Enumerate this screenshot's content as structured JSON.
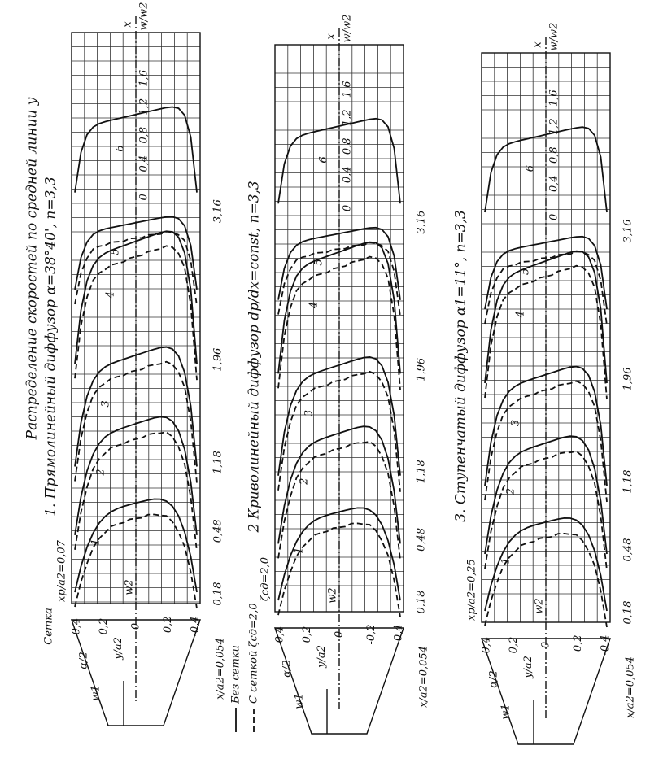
{
  "title": "Распределение скоростей по средней линии y",
  "legend": [
    "Без сетки",
    "С сеткой ζсд=2,0"
  ],
  "axis_x": "x",
  "axis_w": "w/w2",
  "axis_y": "y/a2",
  "inlet_w": "w1",
  "outlet_w": "w2",
  "angle": "α/2",
  "setka": "Сетка",
  "panels": [
    {
      "caption": "1. Прямолинейный диффузор α=38°40', n=3,3",
      "grid_pos": "xp/a2=0,07",
      "inlet": "x/a2=0,054",
      "stations": [
        "0,18",
        "0,48",
        "1,18",
        "1,96",
        "3,16"
      ],
      "y_ticks": [
        "0,4",
        "0,2",
        "0",
        "-0,2",
        "-0,4"
      ],
      "w_ticks": [
        "0",
        "0,4",
        "0,8",
        "1,2",
        "1,6"
      ],
      "profiles": [
        "1",
        "2",
        "3",
        "4",
        "5",
        "6"
      ]
    },
    {
      "caption": "2 Криволинейный диффузор dp/dx=const, n=3,3",
      "grid_pos": "ζсд=2,0",
      "inlet": "x/a2=0,054",
      "stations": [
        "0,18",
        "0,48",
        "1,18",
        "1,96",
        "3,16"
      ],
      "y_ticks": [
        "0,4",
        "0,2",
        "0",
        "-0,2",
        "-0,4"
      ],
      "w_ticks": [
        "0",
        "0,4",
        "0,8",
        "1,2",
        "1,6"
      ],
      "profiles": [
        "1",
        "2",
        "3",
        "4",
        "5",
        "6"
      ]
    },
    {
      "caption": "3. Ступенчатый диффузор α1=11°, n=3,3",
      "grid_pos": "xp/a2=0,25",
      "inlet": "x/a2=0,054",
      "stations": [
        "0,18",
        "0,48",
        "1,18",
        "1,96",
        "3,16"
      ],
      "y_ticks": [
        "0,4",
        "0,2",
        "0",
        "-0,2",
        "-0,4"
      ],
      "w_ticks": [
        "0",
        "0,4",
        "0,8",
        "1,2",
        "1,6"
      ],
      "profiles": [
        "1",
        "2",
        "3",
        "4",
        "5",
        "6"
      ]
    }
  ]
}
